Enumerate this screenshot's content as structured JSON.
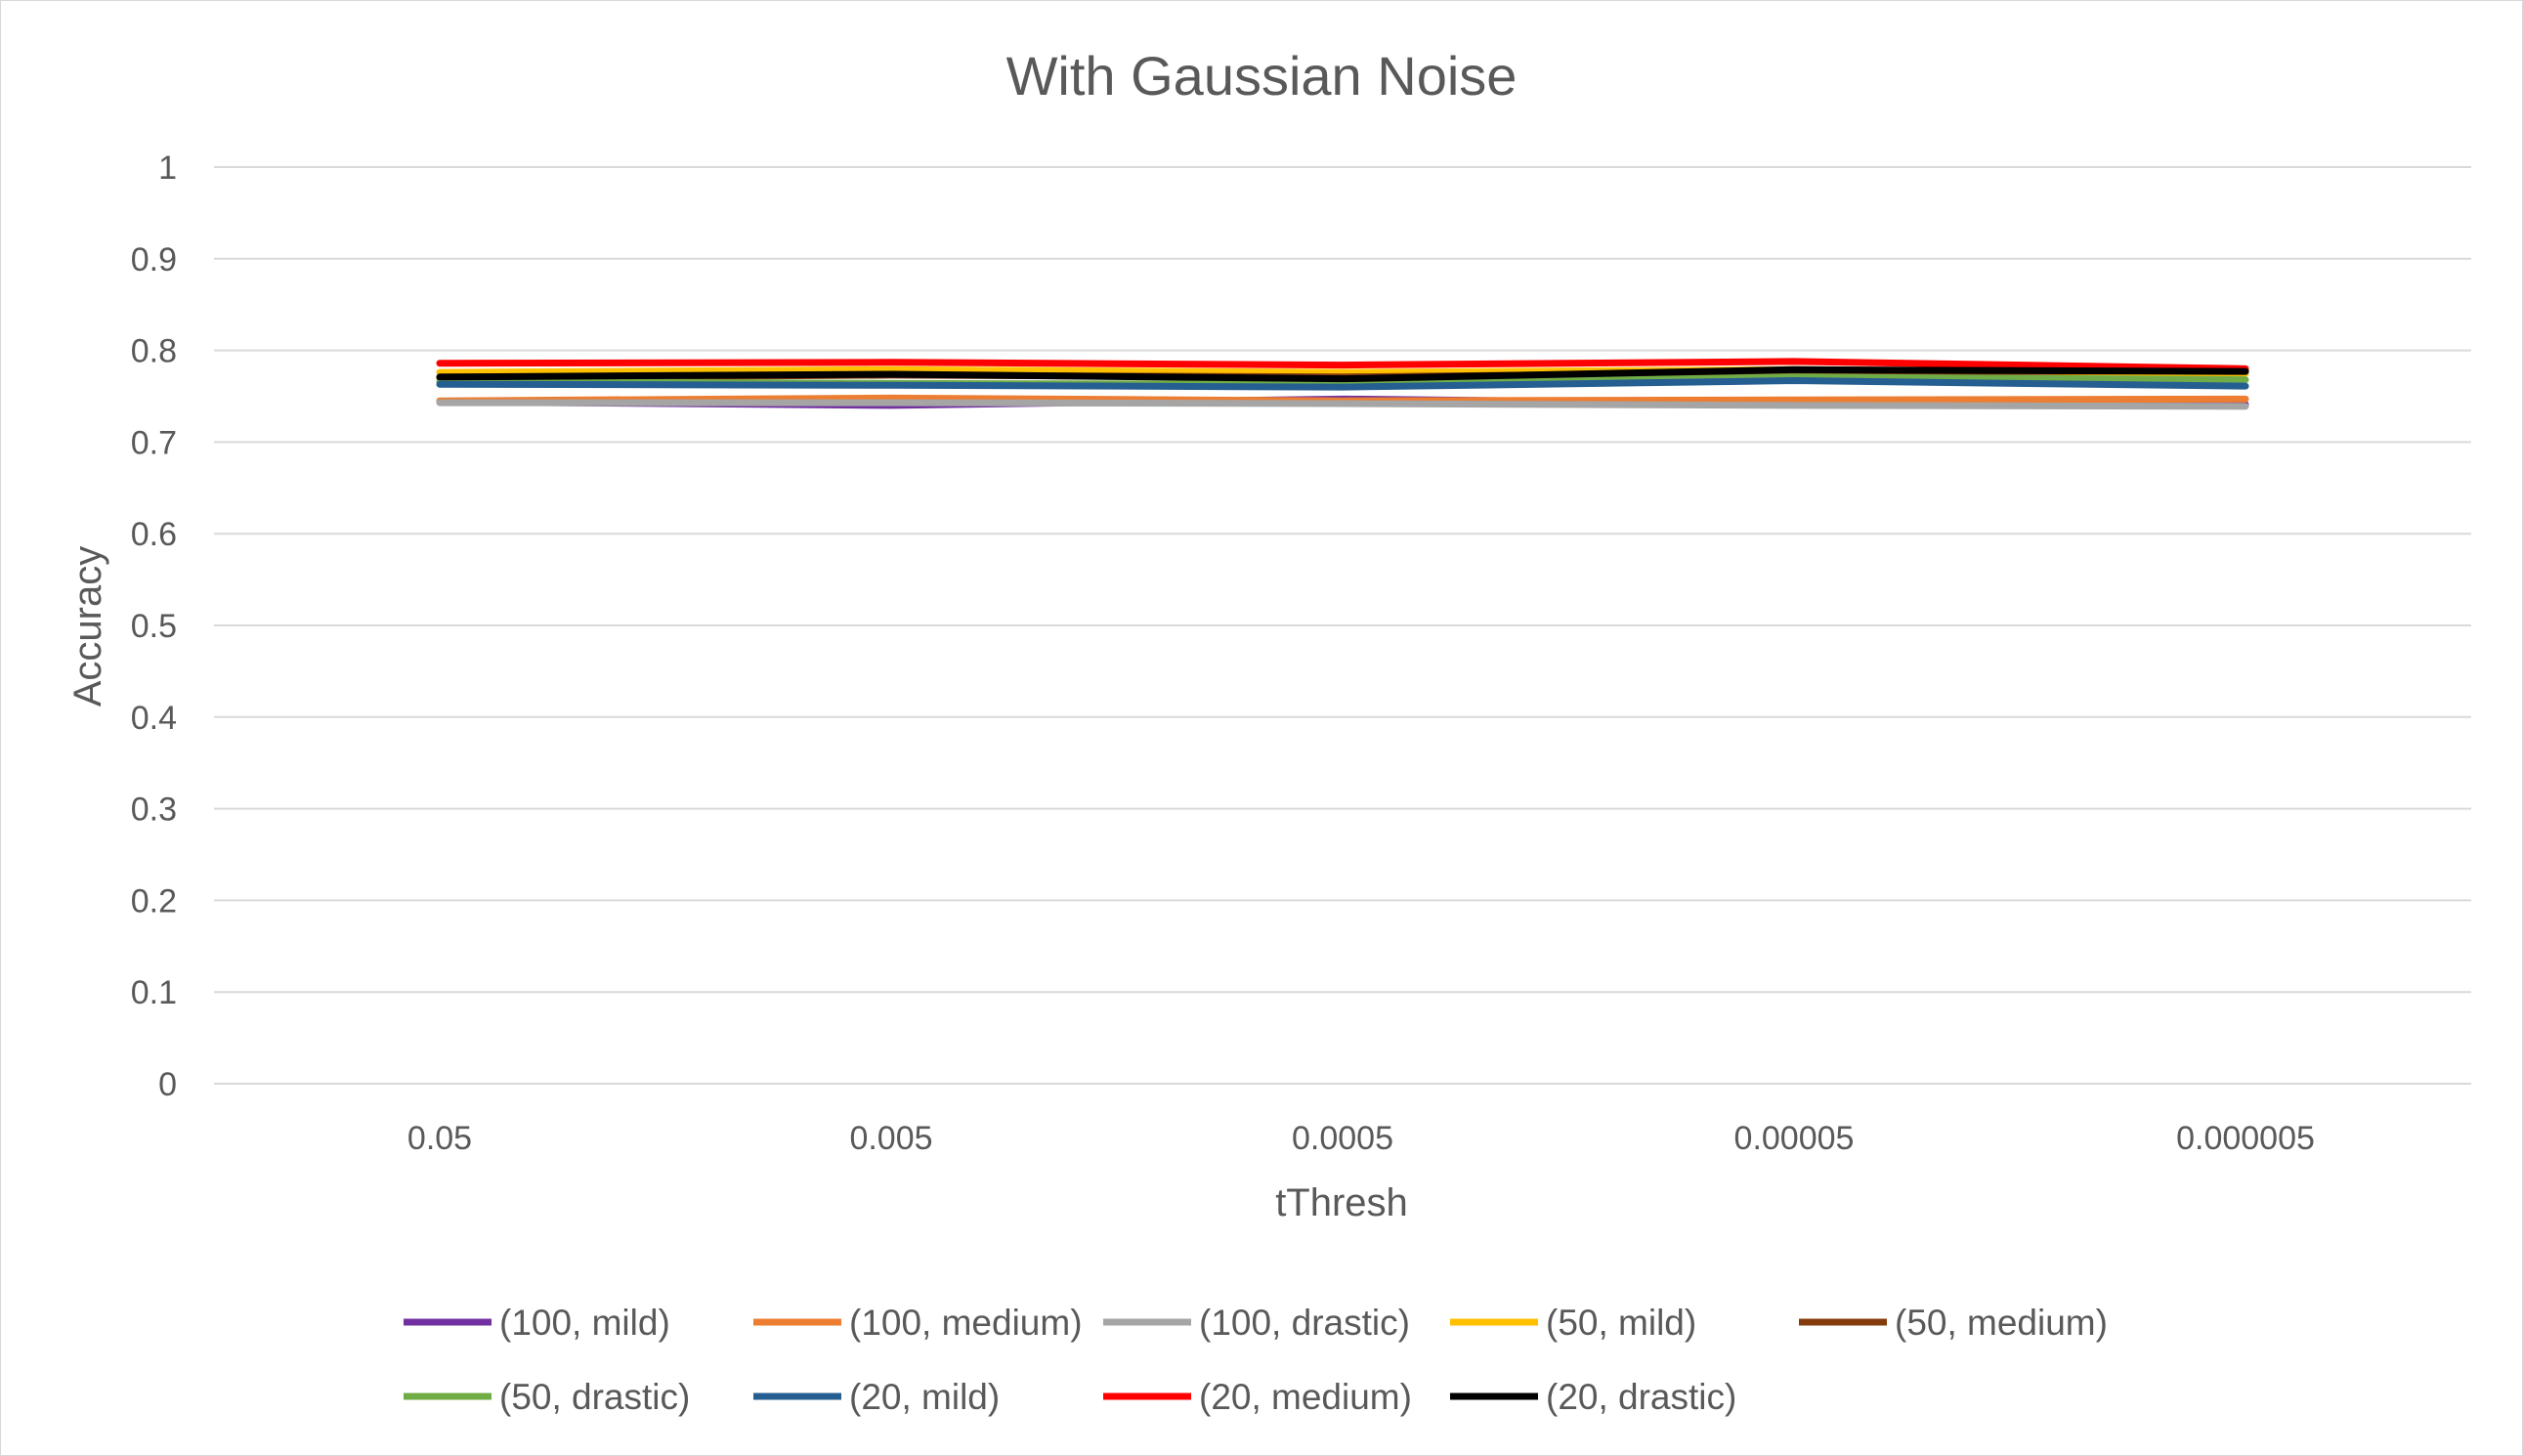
{
  "chart_data": {
    "type": "line",
    "title": "With Gaussian Noise",
    "xlabel": "tThresh",
    "ylabel": "Accuracy",
    "categories": [
      "0.05",
      "0.005",
      "0.0005",
      "0.00005",
      "0.000005"
    ],
    "ylim": [
      0,
      1
    ],
    "yticks": [
      "0",
      "0.1",
      "0.2",
      "0.3",
      "0.4",
      "0.5",
      "0.6",
      "0.7",
      "0.8",
      "0.9",
      "1"
    ],
    "grid": true,
    "legend_position": "bottom",
    "series": [
      {
        "name": "(100, mild)",
        "color": "#7030a0",
        "values": [
          0.744,
          0.74,
          0.747,
          0.742,
          0.741
        ]
      },
      {
        "name": "(100, medium)",
        "color": "#ed7d31",
        "values": [
          0.745,
          0.748,
          0.745,
          0.746,
          0.747
        ]
      },
      {
        "name": "(100, drastic)",
        "color": "#a5a5a5",
        "values": [
          0.743,
          0.743,
          0.742,
          0.74,
          0.739
        ]
      },
      {
        "name": "(50, mild)",
        "color": "#ffc000",
        "values": [
          0.776,
          0.779,
          0.776,
          0.779,
          0.775
        ]
      },
      {
        "name": "(50, medium)",
        "color": "#843c0c",
        "values": [
          0.77,
          0.773,
          0.771,
          0.776,
          0.778
        ]
      },
      {
        "name": "(50, drastic)",
        "color": "#70ad47",
        "values": [
          0.766,
          0.764,
          0.763,
          0.771,
          0.768
        ]
      },
      {
        "name": "(20, mild)",
        "color": "#255e91",
        "values": [
          0.763,
          0.762,
          0.76,
          0.767,
          0.761
        ]
      },
      {
        "name": "(20, medium)",
        "color": "#ff0000",
        "values": [
          0.786,
          0.787,
          0.784,
          0.788,
          0.78
        ]
      },
      {
        "name": "(20, drastic)",
        "color": "#000000",
        "values": [
          0.771,
          0.774,
          0.769,
          0.779,
          0.777
        ]
      }
    ]
  }
}
